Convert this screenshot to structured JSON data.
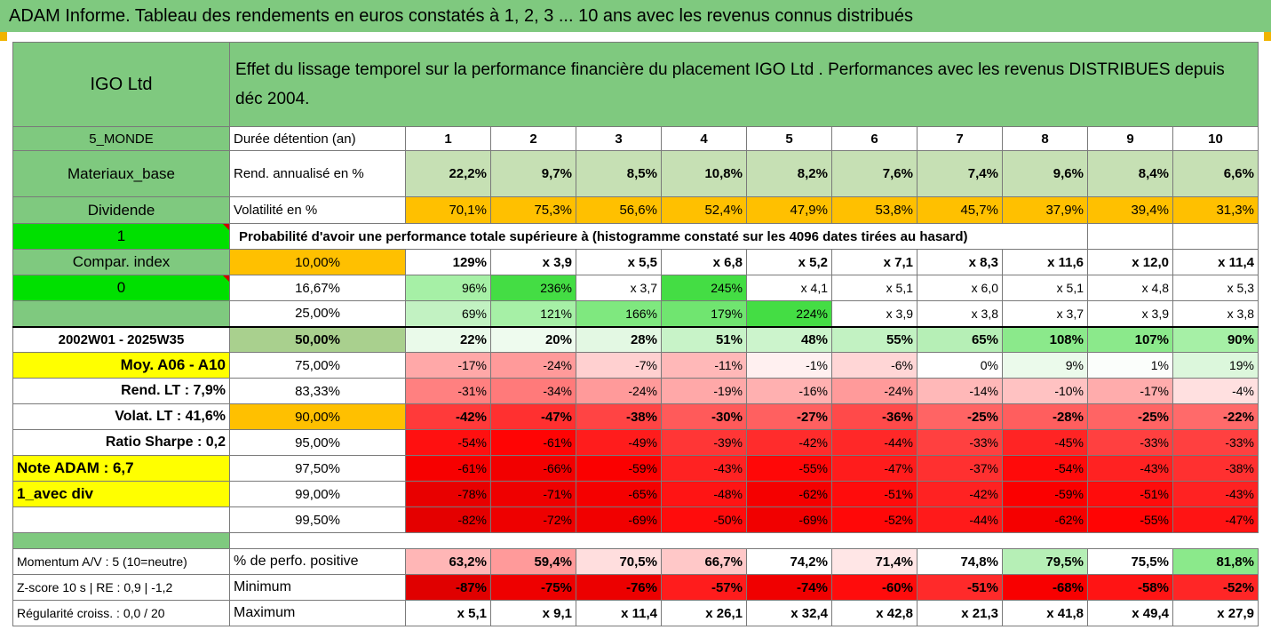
{
  "title": "ADAM Informe. Tableau des rendements en euros constatés à 1, 2, 3 ... 10 ans avec les revenus connus distribués",
  "fund_name": "IGO Ltd",
  "description": "Effet du lissage temporel sur la performance financière du placement IGO Ltd . Performances avec les revenus DISTRIBUES depuis déc 2004.",
  "left": {
    "zone": "5_MONDE",
    "sector": "Materiaux_base",
    "dividend_label": "Dividende",
    "value_1": "1",
    "compar_label": "Compar. index",
    "value_0": "0",
    "period": "2002W01 - 2025W35",
    "moy": "Moy. A06 - A10",
    "rend_lt": "Rend. LT :   7,9%",
    "volat_lt": "Volat. LT :   41,6%",
    "sharpe": "Ratio Sharpe :   0,2",
    "note": "Note ADAM : 6,7",
    "avec_div": "1_avec div"
  },
  "rows": {
    "duration_label": "Durée détention (an)",
    "years": [
      "1",
      "2",
      "3",
      "4",
      "5",
      "6",
      "7",
      "8",
      "9",
      "10"
    ],
    "rend_label": "Rend. annualisé en %",
    "rend": [
      "22,2%",
      "9,7%",
      "8,5%",
      "10,8%",
      "8,2%",
      "7,6%",
      "7,4%",
      "9,6%",
      "8,4%",
      "6,6%"
    ],
    "vol_label": "Volatilité en %",
    "vol": [
      "70,1%",
      "75,3%",
      "56,6%",
      "52,4%",
      "47,9%",
      "53,8%",
      "45,7%",
      "37,9%",
      "39,4%",
      "31,3%"
    ],
    "prob_label": "Probabilité d'avoir une performance totale supérieure à (histogramme constaté sur les 4096 dates tirées au hasard)"
  },
  "quantiles": [
    {
      "p": "10,00%",
      "v": [
        "129%",
        "x 3,9",
        "x 5,5",
        "x 6,8",
        "x 5,2",
        "x 7,1",
        "x 8,3",
        "x 11,6",
        "x 12,0",
        "x 11,4"
      ]
    },
    {
      "p": "16,67%",
      "v": [
        "96%",
        "236%",
        "x 3,7",
        "245%",
        "x 4,1",
        "x 5,1",
        "x 6,0",
        "x 5,1",
        "x 4,8",
        "x 5,3"
      ]
    },
    {
      "p": "25,00%",
      "v": [
        "69%",
        "121%",
        "166%",
        "179%",
        "224%",
        "x 3,9",
        "x 3,8",
        "x 3,7",
        "x 3,9",
        "x 3,8"
      ]
    },
    {
      "p": "50,00%",
      "v": [
        "22%",
        "20%",
        "28%",
        "51%",
        "48%",
        "55%",
        "65%",
        "108%",
        "107%",
        "90%"
      ]
    },
    {
      "p": "75,00%",
      "v": [
        "-17%",
        "-24%",
        "-7%",
        "-11%",
        "-1%",
        "-6%",
        "0%",
        "9%",
        "1%",
        "19%"
      ]
    },
    {
      "p": "83,33%",
      "v": [
        "-31%",
        "-34%",
        "-24%",
        "-19%",
        "-16%",
        "-24%",
        "-14%",
        "-10%",
        "-17%",
        "-4%"
      ]
    },
    {
      "p": "90,00%",
      "v": [
        "-42%",
        "-47%",
        "-38%",
        "-30%",
        "-27%",
        "-36%",
        "-25%",
        "-28%",
        "-25%",
        "-22%"
      ]
    },
    {
      "p": "95,00%",
      "v": [
        "-54%",
        "-61%",
        "-49%",
        "-39%",
        "-42%",
        "-44%",
        "-33%",
        "-45%",
        "-33%",
        "-33%"
      ]
    },
    {
      "p": "97,50%",
      "v": [
        "-61%",
        "-66%",
        "-59%",
        "-43%",
        "-55%",
        "-47%",
        "-37%",
        "-54%",
        "-43%",
        "-38%"
      ]
    },
    {
      "p": "99,00%",
      "v": [
        "-78%",
        "-71%",
        "-65%",
        "-48%",
        "-62%",
        "-51%",
        "-42%",
        "-59%",
        "-51%",
        "-43%"
      ]
    },
    {
      "p": "99,50%",
      "v": [
        "-82%",
        "-72%",
        "-69%",
        "-50%",
        "-69%",
        "-52%",
        "-44%",
        "-62%",
        "-55%",
        "-47%"
      ]
    }
  ],
  "quantile_colors": [
    [
      "#ffffff",
      "#ffffff",
      "#ffffff",
      "#ffffff",
      "#ffffff",
      "#ffffff",
      "#ffffff",
      "#ffffff",
      "#ffffff",
      "#ffffff"
    ],
    [
      "#a6f0a6",
      "#44dd44",
      "#ffffff",
      "#44dd44",
      "#ffffff",
      "#ffffff",
      "#ffffff",
      "#ffffff",
      "#ffffff",
      "#ffffff"
    ],
    [
      "#c2f2c2",
      "#a6f0a6",
      "#7fe87f",
      "#70e570",
      "#44dd44",
      "#ffffff",
      "#ffffff",
      "#ffffff",
      "#ffffff",
      "#ffffff"
    ],
    [
      "#eafaea",
      "#eefbee",
      "#e3f8e3",
      "#c8f3c8",
      "#ccf4cc",
      "#c2f2c2",
      "#b6efb6",
      "#8be98b",
      "#8be98b",
      "#a6f0a6"
    ],
    [
      "#ffa8a8",
      "#ff9a9a",
      "#ffd0d0",
      "#ffb8b8",
      "#fff0f0",
      "#ffd6d6",
      "#ffffff",
      "#ebfaeb",
      "#fbfefb",
      "#dcf7dc"
    ],
    [
      "#ff8080",
      "#ff7a7a",
      "#ff9a9a",
      "#ffa8a8",
      "#ffb0b0",
      "#ff9a9a",
      "#ffb8b8",
      "#ffc2c2",
      "#ffacac",
      "#ffe0e0"
    ],
    [
      "#ff3a3a",
      "#ff3030",
      "#ff4444",
      "#ff5a5a",
      "#ff6060",
      "#ff4a4a",
      "#ff6464",
      "#ff5e5e",
      "#ff6464",
      "#ff6a6a"
    ],
    [
      "#ff1010",
      "#ff0404",
      "#ff1c1c",
      "#ff3636",
      "#ff2c2c",
      "#ff2828",
      "#ff4040",
      "#ff2424",
      "#ff4040",
      "#ff4040"
    ],
    [
      "#f70000",
      "#f20000",
      "#fb0000",
      "#ff2222",
      "#ff0808",
      "#ff1c1c",
      "#ff3030",
      "#ff0a0a",
      "#ff2222",
      "#ff3030"
    ],
    [
      "#e80000",
      "#ef0000",
      "#f50000",
      "#ff1414",
      "#f50000",
      "#ff0c0c",
      "#ff2222",
      "#fb0000",
      "#ff0c0c",
      "#ff2222"
    ],
    [
      "#e40000",
      "#ee0000",
      "#f10000",
      "#ff0c0c",
      "#f10000",
      "#ff0808",
      "#ff1a1a",
      "#f50000",
      "#ff0404",
      "#ff1414"
    ]
  ],
  "stats": {
    "momentum_label": "Momentum A/V : 5 (10=neutre)",
    "positive_label": "% de perfo. positive",
    "positive": [
      "63,2%",
      "59,4%",
      "70,5%",
      "66,7%",
      "74,2%",
      "71,4%",
      "74,8%",
      "79,5%",
      "75,5%",
      "81,8%"
    ],
    "positive_colors": [
      "#ffb6b6",
      "#ff9a9a",
      "#ffdede",
      "#ffc8c8",
      "#ffffff",
      "#ffe6e6",
      "#ffffff",
      "#b6efb6",
      "#ffffff",
      "#8be98b"
    ],
    "zscore_label": "Z-score 10 s  |  RE : 0,9  |  -1,2",
    "min_label": "Minimum",
    "min": [
      "-87%",
      "-75%",
      "-76%",
      "-57%",
      "-74%",
      "-60%",
      "-51%",
      "-68%",
      "-58%",
      "-52%"
    ],
    "min_colors": [
      "#e00000",
      "#ee0000",
      "#ec0000",
      "#ff1c1c",
      "#f00000",
      "#ff0c0c",
      "#ff2a2a",
      "#f80000",
      "#ff1414",
      "#ff2626"
    ],
    "regularity_label": "Régularité croiss. : 0,0 / 20",
    "max_label": "Maximum",
    "max": [
      "x 5,1",
      "x 9,1",
      "x 11,4",
      "x 26,1",
      "x 32,4",
      "x 42,8",
      "x 21,3",
      "x 41,8",
      "x 49,4",
      "x 27,9"
    ]
  }
}
